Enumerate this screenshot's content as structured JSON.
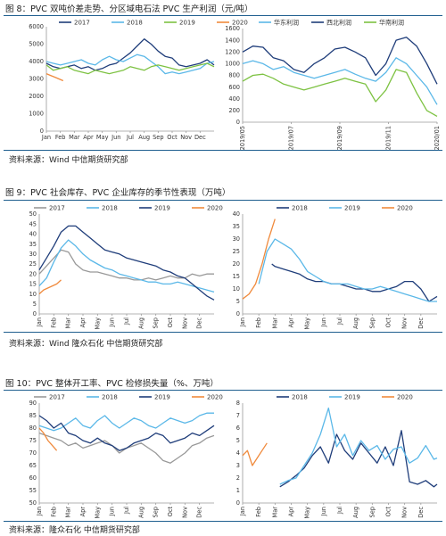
{
  "figures": [
    {
      "title": "图 8：PVC 双吨价差走势、分区域电石法 PVC 生产利润（元/吨）",
      "source": "资料来源：Wind 中信期货研究部"
    },
    {
      "title": "图 9：PVC 社会库存、PVC 企业库存的季节性表现（万吨）",
      "source": "资料来源：Wind  隆众石化  中信期货研究部"
    },
    {
      "title": "图 10：PVC 整体开工率、PVC 检修损失量（%、万吨）",
      "source": "资料来源：隆众石化  中信期货研究部"
    }
  ],
  "colors": {
    "c2017": "#999999",
    "c2018": "#5bb8e8",
    "c2019": "#1f3d7a",
    "c2020": "#f08a3c",
    "east": "#5bb8e8",
    "northwest": "#1f3d7a",
    "south": "#7dc242",
    "rule": "#1f5f8f"
  },
  "chart_data": [
    {
      "id": "fig8-left",
      "type": "line",
      "xticks": [
        "Jan",
        "Feb",
        "Mar",
        "Apr",
        "May",
        "Jun",
        "Jul",
        "Aug",
        "Sep",
        "Oct",
        "Nov",
        "Dec"
      ],
      "yticks": [
        0,
        1000,
        2000,
        3000,
        4000,
        5000,
        6000
      ],
      "ylim": [
        0,
        6000
      ],
      "xlim": [
        0,
        12
      ],
      "legend_position": "top",
      "series": [
        {
          "name": "2017",
          "color": "#1f3d7a",
          "x": [
            0,
            0.5,
            1,
            1.5,
            2,
            2.5,
            3,
            3.5,
            4,
            4.5,
            5,
            5.5,
            6,
            6.5,
            7,
            7.5,
            8,
            8.5,
            9,
            9.5,
            10,
            10.5,
            11,
            11.5,
            12
          ],
          "y": [
            3900,
            3700,
            3600,
            3700,
            3800,
            3600,
            3700,
            3500,
            3600,
            3800,
            3900,
            4200,
            4500,
            4900,
            5300,
            5000,
            4600,
            4300,
            4200,
            3800,
            3700,
            3800,
            3900,
            4100,
            3800
          ]
        },
        {
          "name": "2018",
          "color": "#5bb8e8",
          "x": [
            0,
            0.5,
            1,
            1.5,
            2,
            2.5,
            3,
            3.5,
            4,
            4.5,
            5,
            5.5,
            6,
            6.5,
            7,
            7.5,
            8,
            8.5,
            9,
            9.5,
            10,
            10.5,
            11,
            11.5,
            12
          ],
          "y": [
            4000,
            3900,
            3800,
            3900,
            4000,
            4100,
            3900,
            3800,
            4100,
            4300,
            4100,
            4000,
            4200,
            4400,
            4300,
            4000,
            3700,
            3300,
            3400,
            3300,
            3400,
            3500,
            3600,
            3900,
            4000
          ]
        },
        {
          "name": "2019",
          "color": "#7dc242",
          "x": [
            0,
            0.5,
            1,
            1.5,
            2,
            2.5,
            3,
            3.5,
            4,
            4.5,
            5,
            5.5,
            6,
            6.5,
            7,
            7.5,
            8,
            8.5,
            9,
            9.5,
            10,
            10.5,
            11,
            11.5,
            12
          ],
          "y": [
            3800,
            3500,
            3600,
            3700,
            3500,
            3400,
            3300,
            3500,
            3400,
            3300,
            3400,
            3500,
            3700,
            3600,
            3500,
            3700,
            3800,
            3700,
            3600,
            3500,
            3600,
            3700,
            3800,
            3900,
            3700
          ]
        },
        {
          "name": "2020",
          "color": "#f08a3c",
          "x": [
            0,
            0.3,
            0.6,
            0.9,
            1.2
          ],
          "y": [
            3300,
            3200,
            3100,
            3000,
            2900
          ]
        }
      ]
    },
    {
      "id": "fig8-right",
      "type": "line",
      "xticks": [
        "2019/05",
        "2019/07",
        "2019/09",
        "2019/11",
        "2020/01"
      ],
      "yticks": [
        0,
        200,
        400,
        600,
        800,
        1000,
        1200,
        1400,
        1600
      ],
      "ylim": [
        0,
        1600
      ],
      "xlim": [
        0,
        9.5
      ],
      "legend_position": "top",
      "series": [
        {
          "name": "华东利润",
          "color": "#5bb8e8",
          "x": [
            0,
            0.5,
            1,
            1.5,
            2,
            2.5,
            3,
            3.5,
            4,
            4.5,
            5,
            5.5,
            6,
            6.5,
            7,
            7.5,
            8,
            8.5,
            9,
            9.5
          ],
          "y": [
            1000,
            1050,
            1000,
            900,
            950,
            850,
            800,
            750,
            800,
            850,
            900,
            820,
            750,
            700,
            850,
            1100,
            1000,
            800,
            600,
            300
          ]
        },
        {
          "name": "西北利润",
          "color": "#1f3d7a",
          "x": [
            0,
            0.5,
            1,
            1.5,
            2,
            2.5,
            3,
            3.5,
            4,
            4.5,
            5,
            5.5,
            6,
            6.5,
            7,
            7.5,
            8,
            8.5,
            9,
            9.5
          ],
          "y": [
            1200,
            1300,
            1280,
            1100,
            1050,
            900,
            850,
            1000,
            1100,
            1250,
            1280,
            1200,
            1100,
            800,
            1000,
            1400,
            1450,
            1300,
            1000,
            650
          ]
        },
        {
          "name": "华南利润",
          "color": "#7dc242",
          "x": [
            0,
            0.5,
            1,
            1.5,
            2,
            2.5,
            3,
            3.5,
            4,
            4.5,
            5,
            5.5,
            6,
            6.5,
            7,
            7.5,
            8,
            8.5,
            9,
            9.5
          ],
          "y": [
            700,
            800,
            820,
            750,
            650,
            600,
            550,
            600,
            650,
            700,
            750,
            700,
            650,
            350,
            550,
            900,
            850,
            500,
            200,
            100
          ]
        }
      ]
    },
    {
      "id": "fig9-left",
      "type": "line",
      "xticks": [
        "Jan",
        "Feb",
        "Mar",
        "Apr",
        "May",
        "Jun",
        "Jul",
        "Aug",
        "Sep",
        "Oct",
        "Nov",
        "Dec"
      ],
      "yticks": [
        0,
        5,
        10,
        15,
        20,
        25,
        30,
        35,
        40,
        45,
        50
      ],
      "ylim": [
        0,
        50
      ],
      "xlim": [
        0,
        12
      ],
      "legend_position": "top",
      "series": [
        {
          "name": "2017",
          "color": "#999999",
          "x": [
            0,
            0.5,
            1,
            1.5,
            2,
            2.5,
            3,
            3.5,
            4,
            4.5,
            5,
            5.5,
            6,
            6.5,
            7,
            7.5,
            8,
            8.5,
            9,
            9.5,
            10,
            10.5,
            11,
            11.5,
            12
          ],
          "y": [
            20,
            24,
            28,
            32,
            31,
            25,
            22,
            21,
            21,
            20,
            19,
            18,
            18,
            17,
            17,
            18,
            17,
            18,
            19,
            18,
            18,
            20,
            19,
            20,
            20
          ]
        },
        {
          "name": "2018",
          "color": "#5bb8e8",
          "x": [
            0,
            0.5,
            1,
            1.5,
            2,
            2.5,
            3,
            3.5,
            4,
            4.5,
            5,
            5.5,
            6,
            6.5,
            7,
            7.5,
            8,
            8.5,
            9,
            9.5,
            10,
            10.5,
            11,
            11.5,
            12
          ],
          "y": [
            14,
            18,
            26,
            33,
            37,
            34,
            30,
            27,
            25,
            23,
            22,
            20,
            19,
            18,
            17,
            16,
            16,
            15,
            15,
            16,
            15,
            14,
            13,
            12,
            11
          ]
        },
        {
          "name": "2019",
          "color": "#1f3d7a",
          "x": [
            0,
            0.5,
            1,
            1.5,
            2,
            2.5,
            3,
            3.5,
            4,
            4.5,
            5,
            5.5,
            6,
            6.5,
            7,
            7.5,
            8,
            8.5,
            9,
            9.5,
            10,
            10.5,
            11,
            11.5,
            12
          ],
          "y": [
            22,
            28,
            34,
            41,
            44,
            44,
            41,
            38,
            35,
            32,
            31,
            30,
            28,
            27,
            26,
            25,
            24,
            22,
            21,
            19,
            18,
            15,
            12,
            9,
            7
          ]
        },
        {
          "name": "2020",
          "color": "#f08a3c",
          "x": [
            0,
            0.3,
            0.6,
            0.9,
            1.2,
            1.5
          ],
          "y": [
            10,
            12,
            13,
            14,
            15,
            17
          ]
        }
      ]
    },
    {
      "id": "fig9-right",
      "type": "line",
      "xticks": [
        "Jan",
        "Feb",
        "Mar",
        "Apr",
        "May",
        "Jun",
        "Jul",
        "Aug",
        "Sep",
        "Oct",
        "Nov",
        "Dec"
      ],
      "yticks": [
        0,
        5,
        10,
        15,
        20,
        25,
        30,
        35,
        40
      ],
      "ylim": [
        0,
        40
      ],
      "xlim": [
        0,
        12
      ],
      "legend_position": "top",
      "series": [
        {
          "name": "2018",
          "color": "#1f3d7a",
          "x": [
            1.8,
            2,
            2.5,
            3,
            3.5,
            4,
            4.5,
            5,
            5.5,
            6,
            6.5,
            7,
            7.5,
            8,
            8.5,
            9,
            9.5,
            10,
            10.5,
            11,
            11.5,
            12
          ],
          "y": [
            20,
            19,
            18,
            17,
            16,
            14,
            13,
            13,
            12,
            12,
            11,
            10,
            10,
            9,
            9,
            10,
            11,
            13,
            13,
            10,
            5,
            7
          ]
        },
        {
          "name": "2019",
          "color": "#5bb8e8",
          "x": [
            1,
            1.5,
            2,
            2.5,
            3,
            3.5,
            4,
            4.5,
            5,
            5.5,
            6,
            6.5,
            7,
            7.5,
            8,
            8.5,
            9,
            9.5,
            10,
            10.5,
            11,
            11.5,
            12
          ],
          "y": [
            12,
            25,
            30,
            28,
            26,
            22,
            17,
            15,
            13,
            12,
            12,
            12,
            11,
            10,
            10,
            11,
            10,
            9,
            8,
            7,
            6,
            5,
            5
          ]
        },
        {
          "name": "2020",
          "color": "#f08a3c",
          "x": [
            0,
            0.4,
            0.8,
            1.2,
            1.6,
            2
          ],
          "y": [
            6,
            8,
            12,
            20,
            30,
            38
          ]
        }
      ]
    },
    {
      "id": "fig10-left",
      "type": "line",
      "xticks": [
        "Jan",
        "Feb",
        "Mar",
        "Apr",
        "May",
        "Jun",
        "Jul",
        "Aug",
        "Sep",
        "Oct",
        "Nov",
        "Dec"
      ],
      "yticks": [
        50,
        55,
        60,
        65,
        70,
        75,
        80,
        85,
        90
      ],
      "ylim": [
        50,
        90
      ],
      "xlim": [
        0,
        12
      ],
      "legend_position": "top",
      "series": [
        {
          "name": "2017",
          "color": "#999999",
          "x": [
            0,
            0.5,
            1,
            1.5,
            2,
            2.5,
            3,
            3.5,
            4,
            4.5,
            5,
            5.5,
            6,
            6.5,
            7,
            7.5,
            8,
            8.5,
            9,
            9.5,
            10,
            10.5,
            11,
            11.5,
            12
          ],
          "y": [
            78,
            77,
            76,
            75,
            73,
            74,
            72,
            73,
            74,
            75,
            73,
            70,
            72,
            73,
            74,
            72,
            70,
            67,
            66,
            68,
            70,
            73,
            74,
            76,
            77
          ]
        },
        {
          "name": "2018",
          "color": "#5bb8e8",
          "x": [
            0,
            0.5,
            1,
            1.5,
            2,
            2.5,
            3,
            3.5,
            4,
            4.5,
            5,
            5.5,
            6,
            6.5,
            7,
            7.5,
            8,
            8.5,
            9,
            9.5,
            10,
            10.5,
            11,
            11.5,
            12
          ],
          "y": [
            81,
            80,
            79,
            80,
            82,
            84,
            81,
            80,
            83,
            85,
            82,
            80,
            82,
            84,
            83,
            81,
            80,
            82,
            84,
            83,
            82,
            83,
            85,
            86,
            86
          ]
        },
        {
          "name": "2019",
          "color": "#1f3d7a",
          "x": [
            0,
            0.5,
            1,
            1.5,
            2,
            2.5,
            3,
            3.5,
            4,
            4.5,
            5,
            5.5,
            6,
            6.5,
            7,
            7.5,
            8,
            8.5,
            9,
            9.5,
            10,
            10.5,
            11,
            11.5,
            12
          ],
          "y": [
            85,
            83,
            80,
            82,
            78,
            77,
            75,
            74,
            76,
            74,
            73,
            71,
            72,
            74,
            75,
            76,
            78,
            77,
            74,
            75,
            76,
            78,
            77,
            79,
            81
          ]
        },
        {
          "name": "2020",
          "color": "#f08a3c",
          "x": [
            0,
            0.3,
            0.6,
            0.9,
            1.2
          ],
          "y": [
            80,
            78,
            75,
            73,
            71
          ]
        }
      ]
    },
    {
      "id": "fig10-right",
      "type": "line",
      "xticks": [
        "Jan",
        "Feb",
        "Mar",
        "Apr",
        "May",
        "Jun",
        "Jul",
        "Aug",
        "Sep",
        "Oct",
        "Nov",
        "Dec"
      ],
      "yticks": [
        0,
        1,
        2,
        3,
        4,
        5,
        6,
        7,
        8
      ],
      "ylim": [
        0,
        8
      ],
      "xlim": [
        0,
        12
      ],
      "legend_position": "top",
      "series": [
        {
          "name": "2018",
          "color": "#1f3d7a",
          "x": [
            2.3,
            2.8,
            3.3,
            3.8,
            4.3,
            4.8,
            5.3,
            5.8,
            6.3,
            6.8,
            7.3,
            7.8,
            8.3,
            8.8,
            9.3,
            9.8,
            10.3,
            10.8,
            11.3,
            11.8,
            12
          ],
          "y": [
            1.3,
            1.7,
            2.2,
            2.8,
            3.8,
            4.5,
            3.2,
            5.5,
            4.2,
            3.5,
            4.8,
            4.0,
            3.2,
            4.5,
            3.0,
            5.8,
            1.7,
            1.5,
            1.8,
            1.3,
            1.5
          ]
        },
        {
          "name": "2019",
          "color": "#5bb8e8",
          "x": [
            2.3,
            2.8,
            3.3,
            3.8,
            4.3,
            4.8,
            5.3,
            5.8,
            6.3,
            6.8,
            7.3,
            7.8,
            8.3,
            8.8,
            9.3,
            9.8,
            10.3,
            10.8,
            11.3,
            11.8,
            12
          ],
          "y": [
            1.5,
            1.8,
            2.0,
            3.0,
            4.0,
            5.5,
            7.6,
            4.5,
            5.5,
            3.8,
            5.0,
            4.2,
            4.6,
            3.5,
            4.3,
            4.5,
            3.2,
            3.6,
            4.6,
            3.5,
            3.6
          ]
        },
        {
          "name": "2020",
          "color": "#f08a3c",
          "x": [
            0,
            0.3,
            0.6,
            0.9,
            1.2,
            1.5
          ],
          "y": [
            3.8,
            4.2,
            3.0,
            3.6,
            4.2,
            4.8
          ]
        }
      ]
    }
  ]
}
